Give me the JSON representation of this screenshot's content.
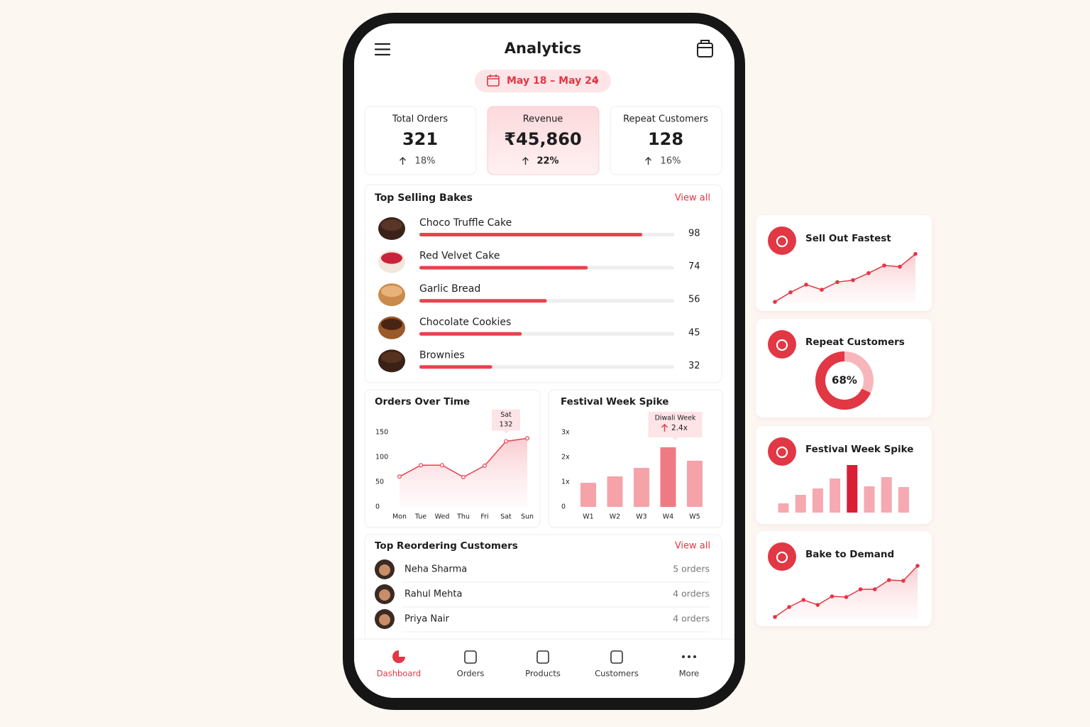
{
  "header": {
    "title": "Analytics",
    "date_range": "May 18 – May 24"
  },
  "kpis": [
    {
      "label": "Total Orders",
      "value": "321",
      "change": "18%"
    },
    {
      "label": "Revenue",
      "value": "₹45,860",
      "change": "22%"
    },
    {
      "label": "Repeat Customers",
      "value": "128",
      "change": "16%"
    }
  ],
  "top_selling": {
    "type": "bar",
    "title": "Top Selling Bakes",
    "link": "View all",
    "categories": [
      "Choco Truffle Cake",
      "Red Velvet Cake",
      "Garlic Bread",
      "Chocolate Cookies",
      "Brownies"
    ],
    "values": [
      98,
      74,
      56,
      45,
      32
    ],
    "xlim": [
      0,
      112
    ],
    "color": "#e8424f"
  },
  "orders_over_time": {
    "type": "line",
    "title": "Orders Over Time",
    "categories": [
      "Mon",
      "Tue",
      "Wed",
      "Thu",
      "Fri",
      "Sat",
      "Sun"
    ],
    "values": [
      61,
      84,
      84,
      60,
      83,
      132,
      138
    ],
    "ylim": [
      0,
      150
    ],
    "yticks": [
      0,
      50,
      100,
      150
    ],
    "color": "#e8424f",
    "annotation": {
      "label": "Sat",
      "value": 132
    }
  },
  "festival": {
    "type": "bar",
    "title": "Festival Week Spike",
    "categories": [
      "W1",
      "W2",
      "W3",
      "W4",
      "W5"
    ],
    "values": [
      0.97,
      1.23,
      1.57,
      2.4,
      1.86
    ],
    "ylim": [
      0,
      3
    ],
    "yticks": [
      0,
      {
        "value": 1,
        "label": "1x"
      },
      {
        "value": 2,
        "label": "2x"
      },
      {
        "value": 3,
        "label": "3x"
      }
    ],
    "color": "#f5a3a9",
    "highlight": 3,
    "highlight_color": "#f07a84",
    "annotation": {
      "label": "Diwali Week",
      "value": 2.4,
      "value_label": "2.4x"
    }
  },
  "customers": {
    "title": "Top Reordering Customers",
    "link": "View all",
    "rows": [
      {
        "name": "Neha Sharma",
        "orders": "5 orders"
      },
      {
        "name": "Rahul Mehta",
        "orders": "4 orders"
      },
      {
        "name": "Priya Nair",
        "orders": "4 orders"
      }
    ]
  },
  "nav": {
    "items": [
      "Dashboard",
      "Orders",
      "Products",
      "Customers",
      "More"
    ],
    "active": 0
  },
  "side_cards": [
    {
      "type": "line",
      "title": "Sell Out Fastest",
      "values": [
        2,
        17,
        29,
        21,
        33,
        36,
        47,
        59,
        57,
        77
      ],
      "ylim": [
        0,
        80
      ],
      "color": "#e23744"
    },
    {
      "type": "pie",
      "title": "Repeat Customers",
      "values": [
        68
      ],
      "value_labels": [
        "68%"
      ],
      "color": "#e23744"
    },
    {
      "type": "bar",
      "title": "Festival Week Spike",
      "values": [
        13,
        25,
        34,
        48,
        67,
        37,
        50,
        36
      ],
      "ylim": [
        0,
        70
      ],
      "color": "#f6a9b0",
      "highlight": 4,
      "highlight_color": "#d91e36"
    },
    {
      "type": "line",
      "title": "Bake to Demand",
      "values": [
        3,
        17,
        27,
        20,
        32,
        31,
        42,
        42,
        55,
        54,
        75
      ],
      "ylim": [
        0,
        80
      ],
      "color": "#e23744"
    }
  ]
}
